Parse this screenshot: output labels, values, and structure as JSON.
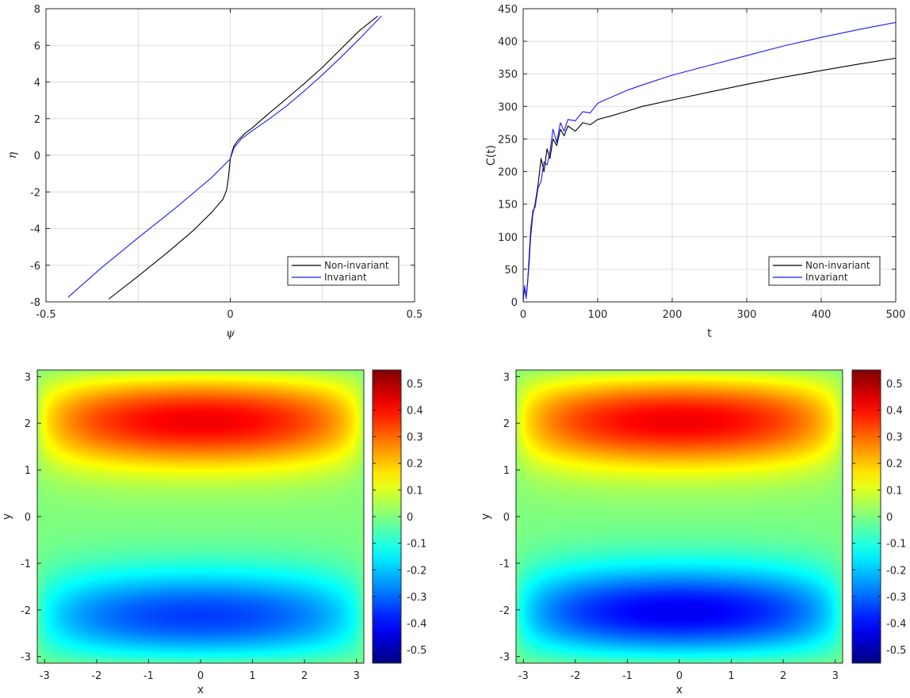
{
  "chart_data": [
    {
      "id": "tl",
      "type": "line",
      "xlabel": "ψ",
      "ylabel": "η",
      "xlim": [
        -0.5,
        0.5
      ],
      "ylim": [
        -8,
        8
      ],
      "xticks": [
        -0.5,
        0,
        0.5
      ],
      "xtick_labels": [
        "-0.5",
        "0",
        "0.5"
      ],
      "yticks": [
        -8,
        -6,
        -4,
        -2,
        0,
        2,
        4,
        6,
        8
      ],
      "ytick_labels": [
        "-8",
        "-6",
        "-4",
        "-2",
        "0",
        "2",
        "4",
        "6",
        "8"
      ],
      "xgrid": [
        -0.25,
        0,
        0.25
      ],
      "grid": true,
      "legend_position": "bottom-right",
      "series": [
        {
          "name": "Non-invariant",
          "color": "#000000",
          "x": [
            -0.33,
            -0.25,
            -0.17,
            -0.1,
            -0.05,
            -0.02,
            -0.01,
            -0.005,
            0.0,
            0.005,
            0.01,
            0.02,
            0.04,
            0.06,
            0.1,
            0.15,
            0.2,
            0.25,
            0.3,
            0.35,
            0.4
          ],
          "y": [
            -7.85,
            -6.6,
            -5.3,
            -4.1,
            -3.1,
            -2.4,
            -1.9,
            -1.2,
            -0.2,
            0.2,
            0.5,
            0.8,
            1.2,
            1.5,
            2.2,
            3.05,
            3.9,
            4.8,
            5.8,
            6.8,
            7.6
          ]
        },
        {
          "name": "Invariant",
          "color": "#1a1aff",
          "x": [
            -0.44,
            -0.35,
            -0.25,
            -0.15,
            -0.05,
            0.0,
            0.01,
            0.03,
            0.06,
            0.1,
            0.15,
            0.2,
            0.25,
            0.3,
            0.35,
            0.41
          ],
          "y": [
            -7.75,
            -6.15,
            -4.5,
            -2.9,
            -1.2,
            -0.2,
            0.4,
            0.9,
            1.35,
            1.9,
            2.65,
            3.5,
            4.4,
            5.35,
            6.35,
            7.6
          ]
        }
      ]
    },
    {
      "id": "tr",
      "type": "line",
      "xlabel": "t",
      "ylabel": "C(t)",
      "xlim": [
        0,
        500
      ],
      "ylim": [
        0,
        450
      ],
      "xticks": [
        0,
        100,
        200,
        300,
        400,
        500
      ],
      "xtick_labels": [
        "0",
        "100",
        "200",
        "300",
        "400",
        "500"
      ],
      "yticks": [
        0,
        50,
        100,
        150,
        200,
        250,
        300,
        350,
        400,
        450
      ],
      "ytick_labels": [
        "0",
        "50",
        "100",
        "150",
        "200",
        "250",
        "300",
        "350",
        "400",
        "450"
      ],
      "grid": true,
      "legend_position": "bottom-right",
      "series": [
        {
          "name": "Non-invariant",
          "color": "#000000",
          "x": [
            0,
            2,
            4,
            6,
            8,
            10,
            13,
            16,
            20,
            24,
            28,
            32,
            36,
            40,
            45,
            50,
            55,
            60,
            70,
            80,
            90,
            100,
            120,
            140,
            160,
            200,
            250,
            300,
            350,
            400,
            450,
            500
          ],
          "y": [
            5,
            20,
            8,
            30,
            60,
            100,
            135,
            150,
            180,
            220,
            200,
            235,
            220,
            250,
            240,
            265,
            255,
            270,
            262,
            275,
            272,
            280,
            286,
            293,
            300,
            310,
            322,
            334,
            345,
            355,
            365,
            374
          ]
        },
        {
          "name": "Invariant",
          "color": "#1a1aff",
          "x": [
            0,
            2,
            4,
            6,
            8,
            10,
            13,
            16,
            20,
            24,
            28,
            32,
            36,
            40,
            45,
            50,
            55,
            60,
            70,
            80,
            90,
            100,
            120,
            140,
            160,
            200,
            250,
            300,
            350,
            400,
            450,
            500
          ],
          "y": [
            0,
            25,
            5,
            30,
            70,
            110,
            140,
            145,
            175,
            185,
            215,
            210,
            230,
            265,
            245,
            275,
            262,
            280,
            278,
            292,
            290,
            305,
            315,
            325,
            333,
            348,
            363,
            378,
            393,
            406,
            418,
            429
          ]
        }
      ]
    },
    {
      "id": "bl",
      "type": "heatmap",
      "xlabel": "x",
      "ylabel": "y",
      "xlim": [
        -3.14159,
        3.14159
      ],
      "ylim": [
        -3.14159,
        3.14159
      ],
      "xticks": [
        -3,
        -2,
        -1,
        0,
        1,
        2,
        3
      ],
      "xtick_labels": [
        "-3",
        "-2",
        "-1",
        "0",
        "1",
        "2",
        "3"
      ],
      "yticks": [
        -3,
        -2,
        -1,
        0,
        1,
        2,
        3
      ],
      "ytick_labels": [
        "-3",
        "-2",
        "-1",
        "0",
        "1",
        "2",
        "3"
      ],
      "colormap": "jet",
      "clim": [
        -0.55,
        0.55
      ],
      "peak_value": 0.55,
      "colorbar_ticks": [
        0.5,
        0.4,
        0.3,
        0.2,
        0.1,
        0,
        -0.1,
        -0.2,
        -0.3,
        -0.4,
        -0.5
      ],
      "colorbar_tick_labels": [
        "0.5",
        "0.4",
        "0.3",
        "0.2",
        "0.1",
        "0",
        "-0.1",
        "-0.2",
        "-0.3",
        "-0.4",
        "-0.5"
      ],
      "max_y": 2.2,
      "min_y": -2.3,
      "upper_strength": 1.0,
      "lower_strength": 0.84
    },
    {
      "id": "br",
      "type": "heatmap",
      "xlabel": "x",
      "ylabel": "y",
      "xlim": [
        -3.14159,
        3.14159
      ],
      "ylim": [
        -3.14159,
        3.14159
      ],
      "xticks": [
        -3,
        -2,
        -1,
        0,
        1,
        2,
        3
      ],
      "xtick_labels": [
        "-3",
        "-2",
        "-1",
        "0",
        "1",
        "2",
        "3"
      ],
      "yticks": [
        -3,
        -2,
        -1,
        0,
        1,
        2,
        3
      ],
      "ytick_labels": [
        "-3",
        "-2",
        "-1",
        "0",
        "1",
        "2",
        "3"
      ],
      "colormap": "jet",
      "clim": [
        -0.55,
        0.55
      ],
      "peak_value": 0.55,
      "colorbar_ticks": [
        0.5,
        0.4,
        0.3,
        0.2,
        0.1,
        0,
        -0.1,
        -0.2,
        -0.3,
        -0.4,
        -0.5
      ],
      "colorbar_tick_labels": [
        "0.5",
        "0.4",
        "0.3",
        "0.2",
        "0.1",
        "0",
        "-0.1",
        "-0.2",
        "-0.3",
        "-0.4",
        "-0.5"
      ],
      "max_y": 2.2,
      "min_y": -2.2,
      "upper_strength": 1.0,
      "lower_strength": 1.0
    }
  ]
}
